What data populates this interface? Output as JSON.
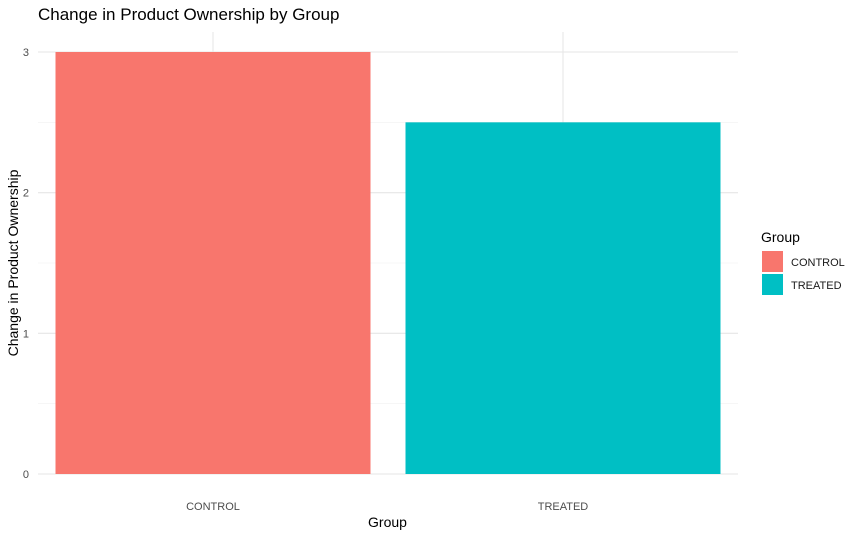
{
  "chart_data": {
    "type": "bar",
    "title": "Change in Product Ownership by Group",
    "xlabel": "Group",
    "ylabel": "Change in Product Ownership",
    "categories": [
      "CONTROL",
      "TREATED"
    ],
    "values": [
      3,
      2.5
    ],
    "colors": [
      "#F8766D",
      "#00BFC4"
    ],
    "ylim": [
      0,
      3
    ],
    "yticks": [
      0,
      1,
      2,
      3
    ],
    "grid": true,
    "legend": {
      "title": "Group",
      "position": "right",
      "entries": [
        "CONTROL",
        "TREATED"
      ]
    }
  }
}
